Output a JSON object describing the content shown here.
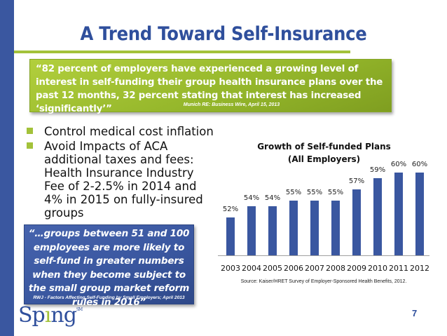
{
  "slide": {
    "title": "A Trend Toward Self-Insurance",
    "page_number": "7",
    "colors": {
      "brand_blue": "#3a57a0",
      "accent_green": "#a3c23a"
    }
  },
  "quote_box": {
    "text": "“82 percent of employers have experienced a growing level of interest in self-funding their group health insurance plans over the past 12 months, 32 percent stating that interest has increased ‘significantly’”",
    "source": "Munich RE: Business Wire, April 15, 2013"
  },
  "bullets": [
    {
      "text": "Control medical cost inflation"
    },
    {
      "text": "Avoid Impacts of ACA additional taxes and fees: Health Insurance Industry Fee of 2-2.5% in 2014 and 4% in 2015 on fully-insured groups"
    }
  ],
  "callout": {
    "text": "“…groups between 51 and 100 employees are more likely to self-fund in greater numbers when they become subject to the small group market reform rules in 2016”",
    "source": "RWJ - Factors Affecting Self-Funding by Small Employers; April 2013"
  },
  "logo": {
    "pre": "Sp",
    "accent": "ı",
    "post": "ng",
    "mark": "SM"
  },
  "chart_data": {
    "type": "bar",
    "title": "Growth of Self-funded Plans",
    "subtitle": "(All Employers)",
    "categories": [
      "2003",
      "2004",
      "2005",
      "2006",
      "2007",
      "2008",
      "2009",
      "2010",
      "2011",
      "2012"
    ],
    "values": [
      52,
      54,
      54,
      55,
      55,
      55,
      57,
      59,
      60,
      60
    ],
    "value_labels": [
      "52%",
      "54%",
      "54%",
      "55%",
      "55%",
      "55%",
      "57%",
      "59%",
      "60%",
      "60%"
    ],
    "xlabel": "",
    "ylabel": "",
    "grid": false,
    "legend": false,
    "source": "Source: Kaiser/HRET Survey of Employer-Sponsored Health Benefits, 2012.",
    "bar_color": "#3a57a0"
  }
}
